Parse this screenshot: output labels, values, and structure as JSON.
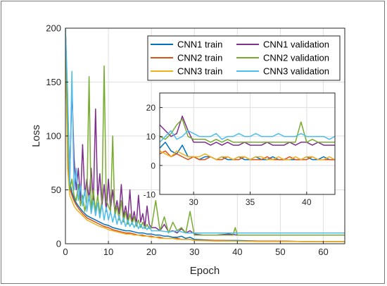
{
  "chart_data": {
    "type": "line",
    "title": "",
    "xlabel": "Epoch",
    "ylabel": "Loss",
    "xlim": [
      0,
      65
    ],
    "ylim": [
      0,
      200
    ],
    "xticks": [
      0,
      10,
      20,
      30,
      40,
      50,
      60
    ],
    "yticks": [
      0,
      50,
      100,
      150,
      200
    ],
    "grid": true,
    "legend": "top-right",
    "series": [
      {
        "name": "CNN1 train",
        "color": "#0072BD",
        "x": [
          0,
          0.5,
          1,
          1.5,
          2,
          2.5,
          3,
          4,
          5,
          6,
          7,
          8,
          9,
          10,
          11,
          12,
          13,
          14,
          15,
          16,
          17,
          18,
          19,
          20,
          21,
          22,
          23,
          24,
          25,
          26,
          27,
          28,
          29,
          30,
          35,
          40,
          45,
          50,
          55,
          60,
          65
        ],
        "y": [
          200,
          90,
          58,
          48,
          42,
          38,
          35,
          30,
          26,
          24,
          22,
          20,
          18,
          17,
          15,
          14,
          13,
          12,
          12,
          11,
          10,
          10,
          9,
          9,
          8,
          8,
          7,
          7,
          6,
          6,
          7,
          5,
          6,
          4,
          3,
          3,
          2.5,
          2.5,
          2,
          2,
          2
        ]
      },
      {
        "name": "CNN2 train",
        "color": "#D95319",
        "x": [
          0,
          0.5,
          1,
          1.5,
          2,
          2.5,
          3,
          4,
          5,
          6,
          7,
          8,
          9,
          10,
          11,
          12,
          13,
          14,
          15,
          16,
          17,
          18,
          19,
          20,
          21,
          22,
          23,
          24,
          25,
          26,
          27,
          28,
          29,
          30,
          35,
          40,
          45,
          50,
          55,
          60,
          65
        ],
        "y": [
          200,
          80,
          52,
          45,
          40,
          36,
          33,
          28,
          24,
          22,
          20,
          18,
          16,
          15,
          13,
          12,
          11,
          10,
          10,
          9,
          8,
          8,
          7,
          7,
          6,
          6,
          5,
          5,
          5,
          5,
          4,
          4,
          4,
          3,
          3,
          2.5,
          2.5,
          2.5,
          2,
          2,
          2
        ]
      },
      {
        "name": "CNN3 train",
        "color": "#EDB120",
        "x": [
          0,
          0.5,
          1,
          1.5,
          2,
          2.5,
          3,
          4,
          5,
          6,
          7,
          8,
          9,
          10,
          11,
          12,
          13,
          14,
          15,
          16,
          17,
          18,
          19,
          20,
          21,
          22,
          23,
          24,
          25,
          26,
          27,
          28,
          29,
          30,
          35,
          40,
          45,
          50,
          55,
          60,
          65
        ],
        "y": [
          200,
          70,
          45,
          40,
          35,
          32,
          30,
          26,
          22,
          20,
          18,
          16,
          15,
          13,
          12,
          11,
          10,
          9,
          9,
          8,
          8,
          7,
          7,
          6,
          6,
          5,
          5,
          5,
          5,
          4,
          4,
          4,
          4,
          3,
          2.5,
          2.5,
          2,
          2,
          2,
          2,
          2
        ]
      },
      {
        "name": "CNN1 validation",
        "color": "#7E2F8E",
        "x": [
          0,
          0.5,
          1,
          1.5,
          2,
          2.5,
          3,
          3.5,
          4,
          4.5,
          5,
          5.5,
          6,
          6.5,
          7,
          7.5,
          8,
          8.5,
          9,
          9.5,
          10,
          10.5,
          11,
          11.5,
          12,
          12.5,
          13,
          13.5,
          14,
          14.5,
          15,
          15.5,
          16,
          16.5,
          17,
          17.5,
          18,
          18.5,
          19,
          19.5,
          20,
          21,
          22,
          23,
          24,
          25,
          26,
          27,
          28,
          29,
          30,
          32,
          35,
          38,
          40,
          45,
          50,
          55,
          60,
          65
        ],
        "y": [
          200,
          130,
          60,
          145,
          80,
          50,
          70,
          40,
          92,
          45,
          60,
          40,
          70,
          38,
          125,
          42,
          65,
          35,
          55,
          30,
          60,
          32,
          50,
          30,
          40,
          28,
          55,
          25,
          35,
          22,
          50,
          20,
          30,
          18,
          45,
          20,
          28,
          16,
          35,
          18,
          15,
          15,
          12,
          18,
          11,
          12,
          10,
          14,
          10,
          12,
          9,
          8,
          8,
          9,
          8,
          8,
          8,
          8,
          8,
          8
        ]
      },
      {
        "name": "CNN2 validation",
        "color": "#77AC30",
        "x": [
          0,
          0.5,
          1,
          1.5,
          2,
          2.5,
          3,
          3.5,
          4,
          4.5,
          5,
          5.5,
          6,
          6.5,
          7,
          7.5,
          8,
          8.5,
          9,
          9.5,
          10,
          10.5,
          11,
          11.5,
          12,
          12.5,
          13,
          13.5,
          14,
          14.5,
          15,
          15.5,
          16,
          16.5,
          17,
          17.5,
          18,
          18.5,
          19,
          19.5,
          20,
          21,
          22,
          23,
          24,
          25,
          26,
          27,
          28,
          29,
          30,
          35,
          39,
          39.5,
          40,
          45,
          50,
          55,
          60,
          65
        ],
        "y": [
          200,
          110,
          50,
          60,
          45,
          40,
          55,
          35,
          45,
          30,
          40,
          155,
          30,
          50,
          30,
          45,
          28,
          40,
          165,
          40,
          35,
          30,
          100,
          25,
          35,
          22,
          40,
          20,
          30,
          18,
          28,
          18,
          25,
          16,
          22,
          15,
          20,
          14,
          18,
          14,
          15,
          40,
          12,
          25,
          10,
          20,
          12,
          15,
          10,
          30,
          8,
          8,
          8,
          15,
          8,
          8,
          8,
          8,
          8,
          8
        ]
      },
      {
        "name": "CNN3 validation",
        "color": "#4DBEEE",
        "x": [
          0,
          0.5,
          1,
          1.5,
          2,
          2.5,
          3,
          3.5,
          4,
          4.5,
          5,
          5.5,
          6,
          6.5,
          7,
          7.5,
          8,
          8.5,
          9,
          9.5,
          10,
          10.5,
          11,
          11.5,
          12,
          12.5,
          13,
          13.5,
          14,
          14.5,
          15,
          15.5,
          16,
          16.5,
          17,
          17.5,
          18,
          18.5,
          19,
          19.5,
          20,
          22,
          24,
          26,
          28,
          30,
          35,
          40,
          45,
          50,
          55,
          60,
          65
        ],
        "y": [
          200,
          140,
          55,
          160,
          50,
          70,
          40,
          55,
          35,
          50,
          30,
          45,
          28,
          40,
          26,
          38,
          24,
          36,
          22,
          34,
          22,
          30,
          20,
          28,
          18,
          26,
          18,
          24,
          16,
          22,
          16,
          20,
          15,
          20,
          14,
          18,
          14,
          16,
          13,
          16,
          12,
          12,
          11,
          12,
          10,
          10,
          10,
          10,
          10,
          10,
          10,
          10,
          10
        ]
      }
    ],
    "inset": {
      "xlim": [
        27,
        42.5
      ],
      "ylim": [
        -10,
        25
      ],
      "xticks": [
        30,
        35,
        40
      ],
      "yticks": [
        -10,
        0,
        10,
        20
      ],
      "grid": true,
      "series": [
        {
          "name": "CNN1 train",
          "color": "#0072BD",
          "x": [
            27,
            27.5,
            28,
            28.5,
            29,
            29.5,
            30,
            30.5,
            31,
            31.5,
            32,
            32.5,
            33,
            33.5,
            34,
            34.5,
            35,
            35.5,
            36,
            36.5,
            37,
            37.5,
            38,
            38.5,
            39,
            39.5,
            40,
            40.5,
            41,
            41.5,
            42,
            42.5
          ],
          "y": [
            6,
            8,
            5,
            4,
            7,
            3,
            3,
            2,
            3,
            3,
            2,
            3,
            2,
            2,
            3,
            2,
            2,
            3,
            2,
            2,
            3,
            2,
            2,
            2,
            2,
            2,
            3,
            2,
            2,
            3,
            2,
            2
          ]
        },
        {
          "name": "CNN2 train",
          "color": "#D95319",
          "x": [
            27,
            27.5,
            28,
            28.5,
            29,
            29.5,
            30,
            30.5,
            31,
            31.5,
            32,
            32.5,
            33,
            33.5,
            34,
            34.5,
            35,
            35.5,
            36,
            36.5,
            37,
            37.5,
            38,
            38.5,
            39,
            39.5,
            40,
            40.5,
            41,
            41.5,
            42,
            42.5
          ],
          "y": [
            4,
            5,
            3,
            4,
            3,
            2,
            3,
            2,
            2,
            3,
            2,
            2,
            3,
            2,
            2,
            3,
            2,
            2,
            2,
            3,
            2,
            2,
            2,
            3,
            2,
            2,
            2,
            3,
            2,
            2,
            2,
            2
          ]
        },
        {
          "name": "CNN3 train",
          "color": "#EDB120",
          "x": [
            27,
            27.5,
            28,
            28.5,
            29,
            29.5,
            30,
            30.5,
            31,
            31.5,
            32,
            32.5,
            33,
            33.5,
            34,
            34.5,
            35,
            35.5,
            36,
            36.5,
            37,
            37.5,
            38,
            38.5,
            39,
            39.5,
            40,
            40.5,
            41,
            41.5,
            42,
            42.5
          ],
          "y": [
            5,
            4,
            3,
            5,
            4,
            3,
            3,
            3,
            4,
            3,
            2,
            3,
            3,
            2,
            3,
            3,
            2,
            3,
            3,
            2,
            2,
            3,
            2,
            2,
            3,
            2,
            3,
            3,
            2,
            2,
            3,
            2
          ]
        },
        {
          "name": "CNN1 validation",
          "color": "#7E2F8E",
          "x": [
            27,
            27.5,
            28,
            28.5,
            29,
            29.5,
            30,
            30.5,
            31,
            31.5,
            32,
            32.5,
            33,
            33.5,
            34,
            34.5,
            35,
            35.5,
            36,
            36.5,
            37,
            37.5,
            38,
            38.5,
            39,
            39.5,
            40,
            40.5,
            41,
            41.5,
            42,
            42.5
          ],
          "y": [
            14,
            12,
            10,
            11,
            17,
            12,
            8,
            8,
            8,
            7,
            8,
            7,
            8,
            7,
            7,
            8,
            7,
            7,
            7,
            8,
            7,
            7,
            7,
            8,
            7,
            8,
            8,
            7,
            8,
            7,
            7,
            7
          ]
        },
        {
          "name": "CNN2 validation",
          "color": "#77AC30",
          "x": [
            27,
            27.5,
            28,
            28.5,
            29,
            29.5,
            30,
            30.5,
            31,
            31.5,
            32,
            32.5,
            33,
            33.5,
            34,
            34.5,
            35,
            35.5,
            36,
            36.5,
            37,
            37.5,
            38,
            38.5,
            39,
            39.5,
            40,
            40.5,
            41,
            41.5,
            42,
            42.5
          ],
          "y": [
            10,
            9,
            11,
            14,
            16,
            10,
            9,
            9,
            9,
            8,
            9,
            8,
            9,
            8,
            8,
            8,
            8,
            8,
            8,
            8,
            8,
            8,
            8,
            8,
            8,
            15,
            8,
            9,
            8,
            8,
            8,
            8
          ]
        },
        {
          "name": "CNN3 validation",
          "color": "#4DBEEE",
          "x": [
            27,
            27.5,
            28,
            28.5,
            29,
            29.5,
            30,
            30.5,
            31,
            31.5,
            32,
            32.5,
            33,
            33.5,
            34,
            34.5,
            35,
            35.5,
            36,
            36.5,
            37,
            37.5,
            38,
            38.5,
            39,
            39.5,
            40,
            40.5,
            41,
            41.5,
            42,
            42.5
          ],
          "y": [
            8,
            10,
            12,
            9,
            10,
            12,
            11,
            10,
            10,
            10,
            11,
            9,
            10,
            10,
            11,
            10,
            10,
            11,
            10,
            10,
            10,
            11,
            10,
            10,
            10,
            11,
            10,
            10,
            10,
            10,
            9,
            10
          ]
        }
      ]
    }
  }
}
